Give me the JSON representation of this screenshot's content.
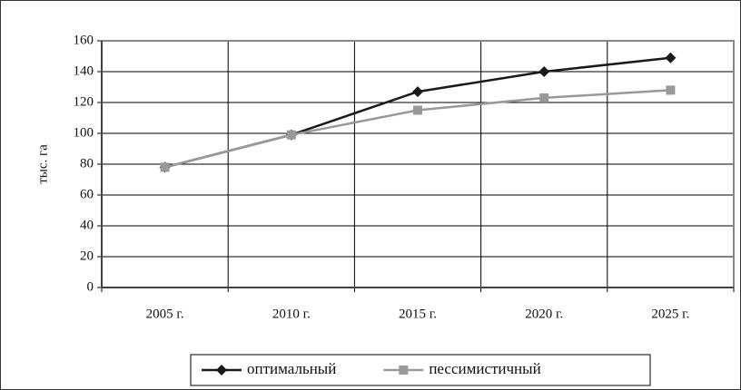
{
  "chart_data": {
    "type": "line",
    "ylabel": "тыс. га",
    "categories": [
      "2005 г.",
      "2010 г.",
      "2015 г.",
      "2020 г.",
      "2025 г."
    ],
    "series": [
      {
        "name": "оптимальный",
        "color": "#1a1a1a",
        "marker": "diamond",
        "values": [
          78,
          99,
          127,
          140,
          149
        ]
      },
      {
        "name": "пессимистичный",
        "color": "#999999",
        "marker": "square",
        "values": [
          78,
          99,
          115,
          123,
          128
        ]
      }
    ],
    "ylim": [
      0,
      160
    ],
    "yticks": [
      0,
      20,
      40,
      60,
      80,
      100,
      120,
      140,
      160
    ],
    "grid": true,
    "legend": "bottom"
  }
}
